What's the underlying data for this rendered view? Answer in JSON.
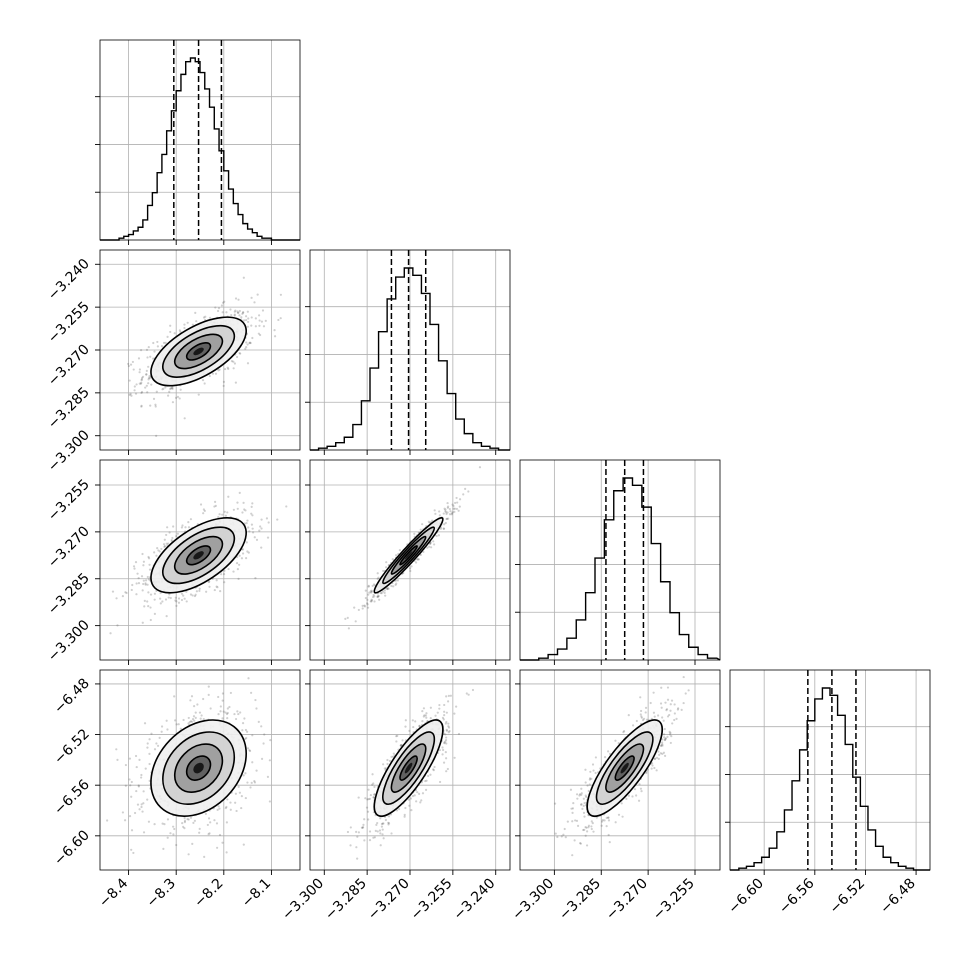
{
  "chart_data": {
    "type": "corner",
    "title": "",
    "dimensions": 4,
    "grid": true,
    "parameters": [
      {
        "index": 0,
        "range": [
          -8.46,
          -8.04
        ],
        "ticks": [
          -8.4,
          -8.3,
          -8.2,
          -8.1
        ],
        "tick_labels": [
          "−8.4",
          "−8.3",
          "−8.2",
          "−8.1"
        ],
        "hist_range": [
          -8.46,
          -8.04
        ],
        "hist_centers": [
          -8.445,
          -8.435,
          -8.425,
          -8.415,
          -8.405,
          -8.395,
          -8.385,
          -8.375,
          -8.365,
          -8.355,
          -8.345,
          -8.335,
          -8.325,
          -8.315,
          -8.305,
          -8.295,
          -8.285,
          -8.275,
          -8.265,
          -8.255,
          -8.245,
          -8.235,
          -8.225,
          -8.215,
          -8.205,
          -8.195,
          -8.185,
          -8.175,
          -8.165,
          -8.155,
          -8.145,
          -8.135,
          -8.125,
          -8.115,
          -8.105,
          -8.095,
          -8.085,
          -8.075,
          -8.065,
          -8.055,
          -8.045
        ],
        "hist_counts": [
          0,
          0,
          0,
          1,
          2,
          3,
          5,
          7,
          11,
          19,
          26,
          37,
          47,
          60,
          71,
          82,
          91,
          98,
          100,
          98,
          92,
          83,
          73,
          61,
          49,
          38,
          28,
          20,
          14,
          9,
          6,
          4,
          2,
          1,
          1,
          0,
          0,
          0,
          0,
          0,
          0
        ],
        "quantiles": [
          -8.305,
          -8.253,
          -8.205
        ],
        "mean": -8.253,
        "sd": 0.05
      },
      {
        "index": 1,
        "range": [
          -3.305,
          -3.235
        ],
        "ticks": [
          -3.3,
          -3.285,
          -3.27,
          -3.255,
          -3.24
        ],
        "tick_labels": [
          "−3.300",
          "−3.285",
          "−3.270",
          "−3.255",
          "−3.240"
        ],
        "hist_range": [
          -3.305,
          -3.235
        ],
        "hist_centers": [
          -3.3035,
          -3.3005,
          -3.2975,
          -3.2945,
          -3.2915,
          -3.2885,
          -3.2855,
          -3.2825,
          -3.2795,
          -3.2765,
          -3.2735,
          -3.2705,
          -3.2675,
          -3.2645,
          -3.2615,
          -3.2585,
          -3.2555,
          -3.2525,
          -3.2495,
          -3.2465,
          -3.2435,
          -3.2405,
          -3.2375
        ],
        "hist_counts": [
          0,
          1,
          2,
          4,
          7,
          14,
          27,
          45,
          65,
          83,
          95,
          100,
          96,
          86,
          69,
          49,
          31,
          17,
          9,
          4,
          2,
          1,
          0
        ],
        "quantiles": [
          -3.2765,
          -3.2705,
          -3.2645
        ],
        "mean": -3.2705,
        "sd": 0.006
      },
      {
        "index": 2,
        "range": [
          -3.311,
          -3.247
        ],
        "ticks": [
          -3.3,
          -3.285,
          -3.27,
          -3.255
        ],
        "tick_labels": [
          "−3.300",
          "−3.285",
          "−3.270",
          "−3.255"
        ],
        "hist_range": [
          -3.311,
          -3.247
        ],
        "hist_centers": [
          -3.3095,
          -3.3065,
          -3.3035,
          -3.3005,
          -3.2975,
          -3.2945,
          -3.2915,
          -3.2885,
          -3.2855,
          -3.2825,
          -3.2795,
          -3.2765,
          -3.2735,
          -3.2705,
          -3.2675,
          -3.2645,
          -3.2615,
          -3.2585,
          -3.2555,
          -3.2525,
          -3.2495
        ],
        "hist_counts": [
          0,
          0,
          1,
          3,
          6,
          12,
          22,
          37,
          56,
          77,
          93,
          100,
          96,
          84,
          64,
          43,
          26,
          14,
          7,
          3,
          1
        ],
        "quantiles": [
          -3.2835,
          -3.2775,
          -3.2715
        ],
        "mean": -3.2775,
        "sd": 0.006
      },
      {
        "index": 3,
        "range": [
          -6.627,
          -6.469
        ],
        "ticks": [
          -6.6,
          -6.56,
          -6.52,
          -6.48
        ],
        "tick_labels": [
          "−6.60",
          "−6.56",
          "−6.52",
          "−6.48"
        ],
        "hist_range": [
          -6.627,
          -6.469
        ],
        "hist_centers": [
          -6.623,
          -6.617,
          -6.611,
          -6.605,
          -6.599,
          -6.593,
          -6.587,
          -6.581,
          -6.575,
          -6.569,
          -6.563,
          -6.557,
          -6.551,
          -6.545,
          -6.539,
          -6.533,
          -6.527,
          -6.521,
          -6.515,
          -6.509,
          -6.503,
          -6.497,
          -6.491,
          -6.485,
          -6.479,
          -6.473
        ],
        "hist_counts": [
          0,
          1,
          2,
          4,
          7,
          12,
          21,
          33,
          49,
          66,
          82,
          94,
          100,
          96,
          85,
          69,
          51,
          35,
          22,
          13,
          7,
          4,
          2,
          1,
          0,
          0
        ],
        "quantiles": [
          -6.5655,
          -6.5465,
          -6.5275
        ],
        "mean": -6.5465,
        "sd": 0.019
      }
    ],
    "panels": [
      {
        "row": 0,
        "col": 0,
        "kind": "histogram",
        "param": 0
      },
      {
        "row": 1,
        "col": 0,
        "kind": "2d-density",
        "x_param": 0,
        "y_param": 1,
        "correlation": 0.6
      },
      {
        "row": 1,
        "col": 1,
        "kind": "histogram",
        "param": 1
      },
      {
        "row": 2,
        "col": 0,
        "kind": "2d-density",
        "x_param": 0,
        "y_param": 2,
        "correlation": 0.6
      },
      {
        "row": 2,
        "col": 1,
        "kind": "2d-density",
        "x_param": 1,
        "y_param": 2,
        "correlation": 0.96
      },
      {
        "row": 2,
        "col": 2,
        "kind": "histogram",
        "param": 2
      },
      {
        "row": 3,
        "col": 0,
        "kind": "2d-density",
        "x_param": 0,
        "y_param": 3,
        "correlation": 0.3
      },
      {
        "row": 3,
        "col": 1,
        "kind": "2d-density",
        "x_param": 1,
        "y_param": 3,
        "correlation": 0.8
      },
      {
        "row": 3,
        "col": 2,
        "kind": "2d-density",
        "x_param": 2,
        "y_param": 3,
        "correlation": 0.8
      },
      {
        "row": 3,
        "col": 3,
        "kind": "histogram",
        "param": 3
      }
    ],
    "contour_levels_sigma": [
      0.5,
      1.0,
      1.5,
      2.0
    ],
    "scatter_color": "#555555",
    "density_color": "#000000"
  }
}
